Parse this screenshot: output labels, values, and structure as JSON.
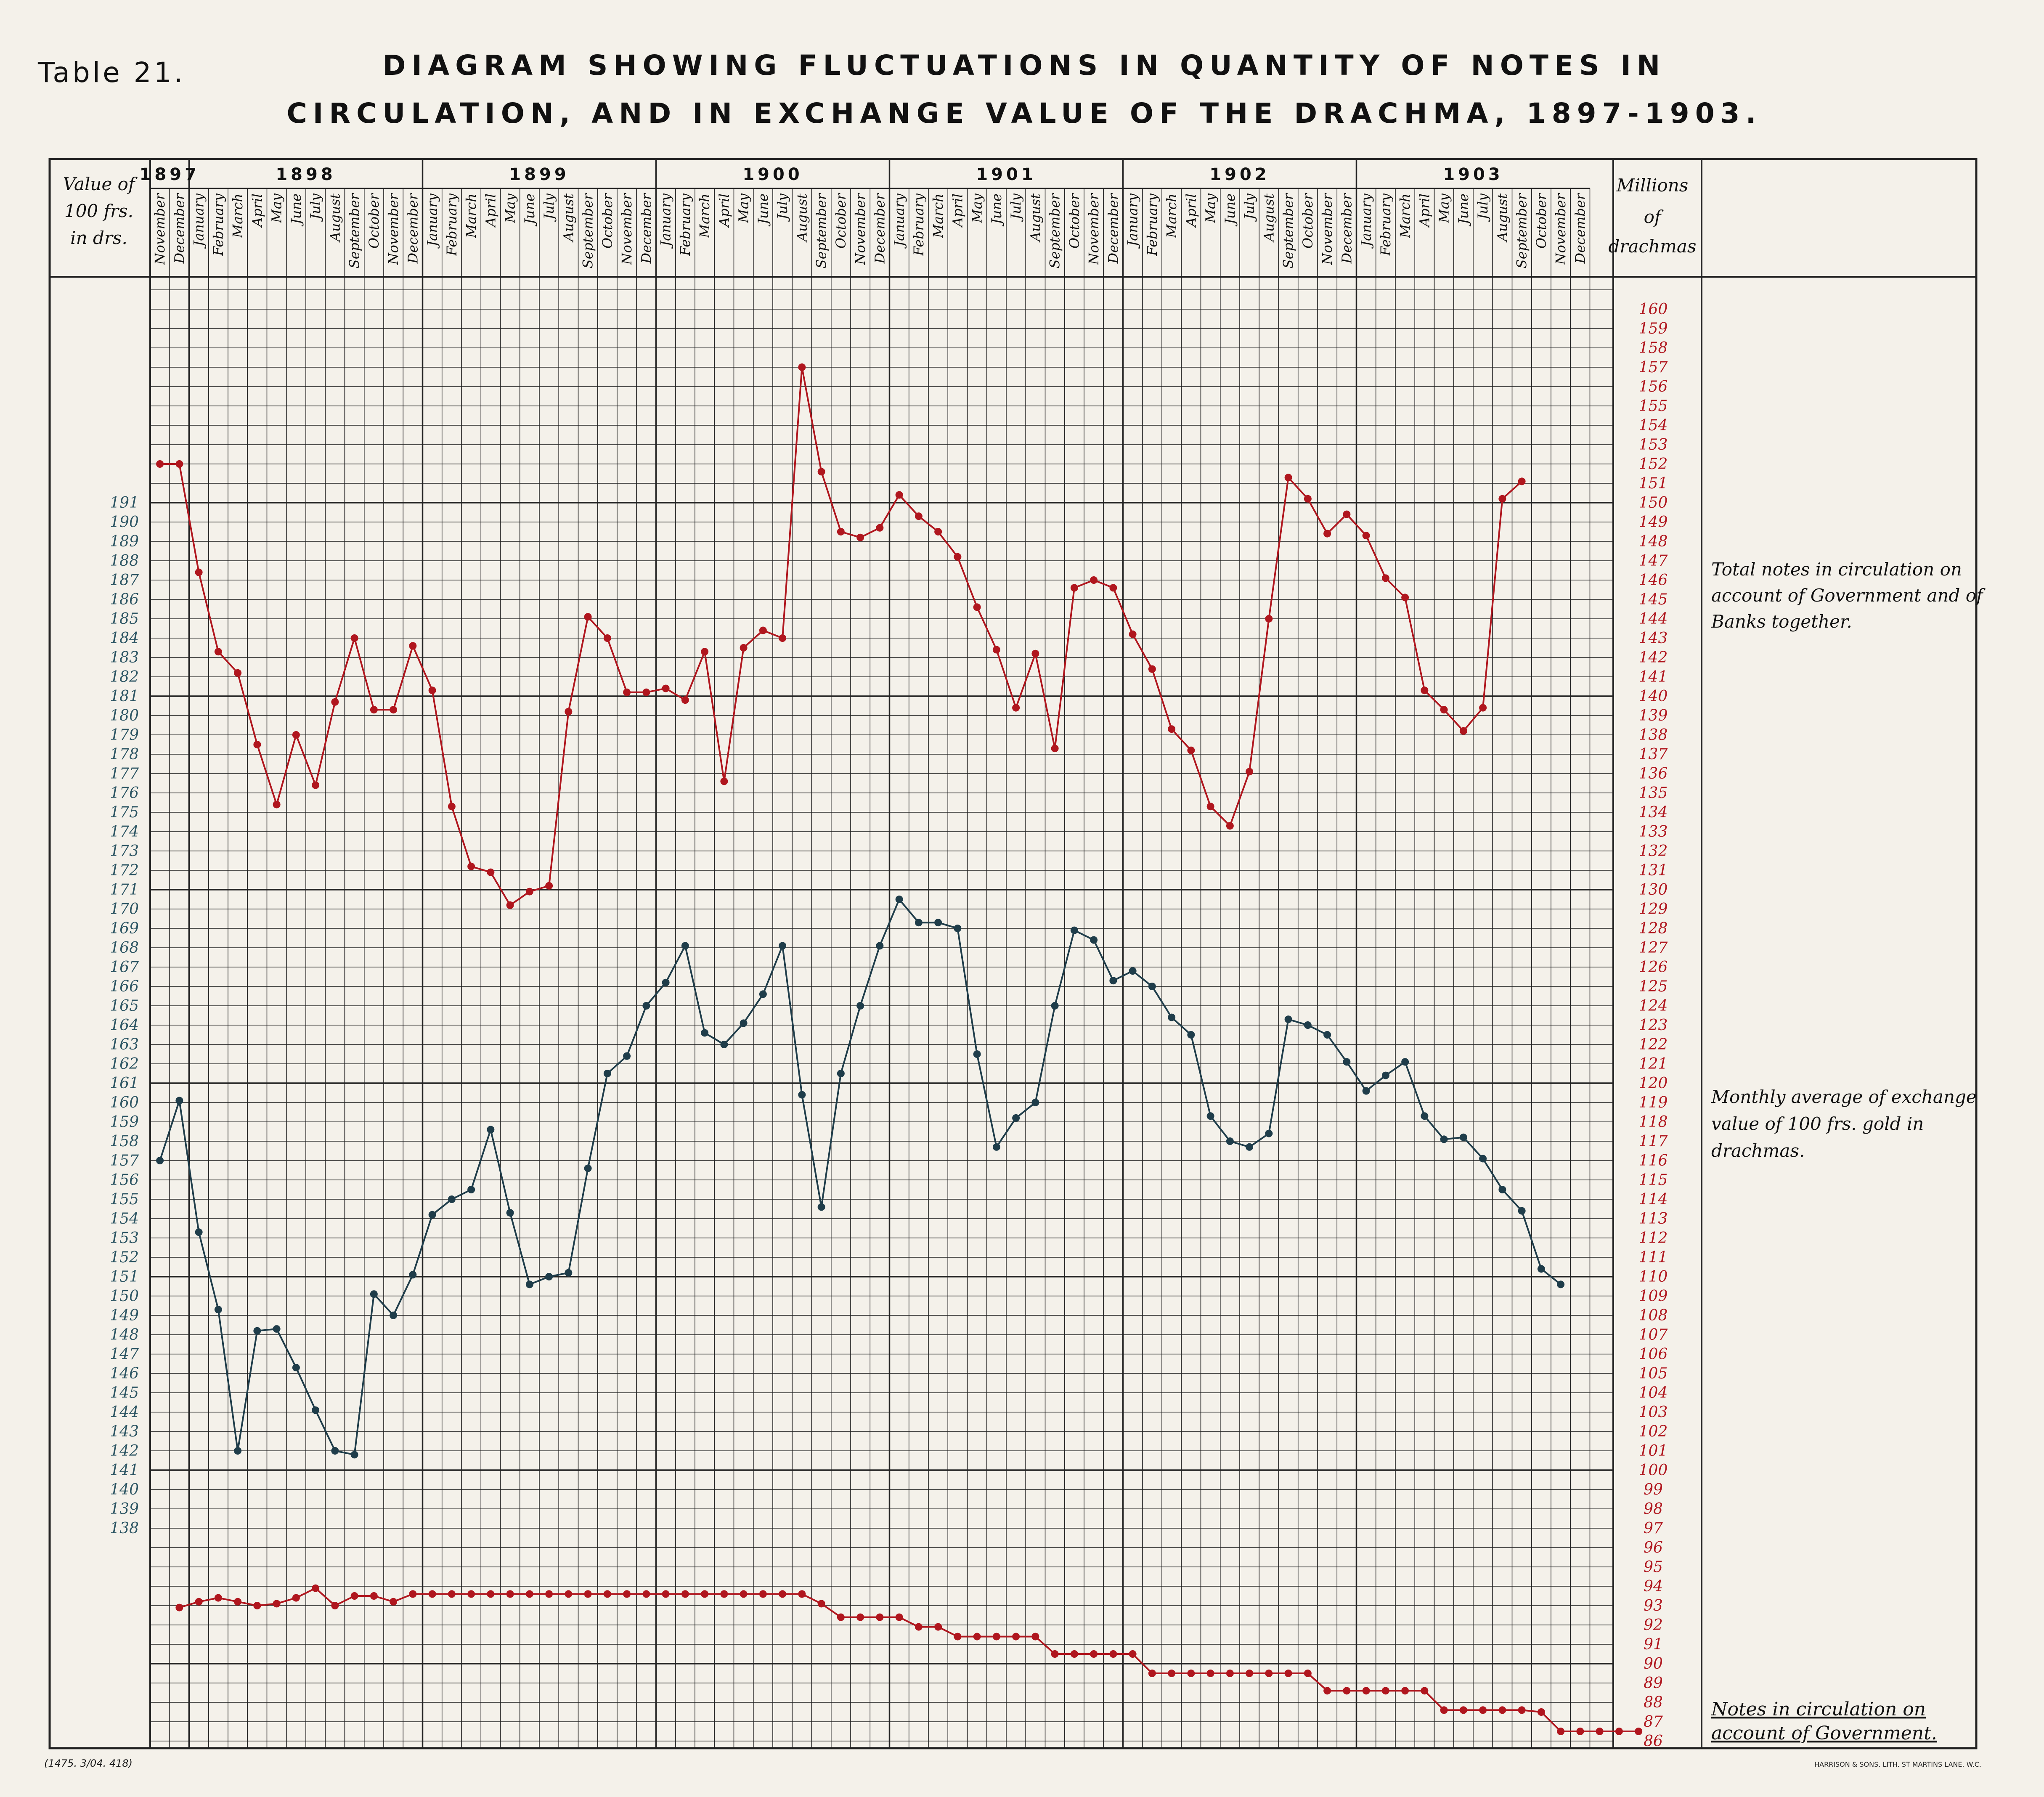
{
  "header": {
    "table_label": "Table 21.",
    "title_line1": "DIAGRAM SHOWING FLUCTUATIONS IN QUANTITY OF NOTES IN",
    "title_line2": "CIRCULATION, AND IN EXCHANGE VALUE OF THE DRACHMA, 1897-1903."
  },
  "left_axis_header": [
    "Value of",
    "100 frs.",
    "in drs."
  ],
  "right_axis_header": [
    "Millions",
    "of",
    "drachmas"
  ],
  "annotations": {
    "total_notes": [
      "Total notes in circulation on",
      "account of Government and of",
      "Banks together."
    ],
    "exchange": [
      "Monthly average of exchange",
      "value of 100 frs. gold in",
      "drachmas."
    ],
    "government_notes": [
      "Notes in circulation on",
      "account of Government."
    ]
  },
  "footer": {
    "left_code": "(1475. 3/04. 418)",
    "printer": "HARRISON & SONS. LITH. ST MARTINS LANE. W.C."
  },
  "colors": {
    "red_series": "#b0161e",
    "blue_series": "#1f3d4a",
    "left_ticks": "#2c5563",
    "right_ticks": "#b0161e",
    "grid": "#222222",
    "paper": "#f4f1ea"
  },
  "chart_data": {
    "type": "line",
    "years": [
      {
        "label": "1897",
        "months": [
          "November",
          "December"
        ]
      },
      {
        "label": "1898",
        "months": [
          "January",
          "February",
          "March",
          "April",
          "May",
          "June",
          "July",
          "August",
          "September",
          "October",
          "November",
          "December"
        ]
      },
      {
        "label": "1899",
        "months": [
          "January",
          "February",
          "March",
          "April",
          "May",
          "June",
          "July",
          "August",
          "September",
          "October",
          "November",
          "December"
        ]
      },
      {
        "label": "1900",
        "months": [
          "January",
          "February",
          "March",
          "April",
          "May",
          "June",
          "July",
          "August",
          "September",
          "October",
          "November",
          "December"
        ]
      },
      {
        "label": "1901",
        "months": [
          "January",
          "February",
          "March",
          "April",
          "May",
          "June",
          "July",
          "August",
          "September",
          "October",
          "November",
          "December"
        ]
      },
      {
        "label": "1902",
        "months": [
          "January",
          "February",
          "March",
          "April",
          "May",
          "June",
          "July",
          "August",
          "September",
          "October",
          "November",
          "December"
        ]
      },
      {
        "label": "1903",
        "months": [
          "January",
          "February",
          "March",
          "April",
          "May",
          "June",
          "July",
          "August",
          "September",
          "October",
          "November",
          "December"
        ]
      }
    ],
    "left_axis": {
      "ticks": [
        191,
        190,
        189,
        188,
        187,
        186,
        185,
        184,
        183,
        182,
        181,
        180,
        179,
        178,
        177,
        176,
        175,
        174,
        173,
        172,
        171,
        170,
        169,
        168,
        167,
        166,
        165,
        164,
        163,
        162,
        161,
        160,
        159,
        158,
        157,
        156,
        155,
        154,
        153,
        152,
        151,
        150,
        149,
        148,
        147,
        146,
        145,
        144,
        143,
        142,
        141,
        140,
        139,
        138
      ]
    },
    "right_axis": {
      "ticks": [
        160,
        159,
        158,
        157,
        156,
        155,
        154,
        153,
        152,
        151,
        150,
        149,
        148,
        147,
        146,
        145,
        144,
        143,
        142,
        141,
        140,
        139,
        138,
        137,
        136,
        135,
        134,
        133,
        132,
        131,
        130,
        129,
        128,
        127,
        126,
        125,
        124,
        123,
        122,
        121,
        120,
        119,
        118,
        117,
        116,
        115,
        114,
        113,
        112,
        111,
        110,
        109,
        108,
        107,
        106,
        105,
        104,
        103,
        102,
        101,
        100,
        99,
        98,
        97,
        96,
        95,
        94,
        93,
        92,
        91,
        90,
        89,
        88,
        87,
        86
      ]
    },
    "series": [
      {
        "name": "Total notes in circulation on account of Government and of Banks together.",
        "axis": "right",
        "color": "#b0161e",
        "start_index": 0,
        "values": [
          152.0,
          152.0,
          146.4,
          142.3,
          141.2,
          137.5,
          134.4,
          138.0,
          135.4,
          139.7,
          143.0,
          139.3,
          139.3,
          142.6,
          140.3,
          134.3,
          131.2,
          130.9,
          129.2,
          129.9,
          130.2,
          139.2,
          144.1,
          143.0,
          140.2,
          140.2,
          140.4,
          139.8,
          142.3,
          135.6,
          142.5,
          143.4,
          143.0,
          157.0,
          151.6,
          148.5,
          148.2,
          148.7,
          150.4,
          149.3,
          148.5,
          147.2,
          144.6,
          142.4,
          139.4,
          142.2,
          137.3,
          145.6,
          146.0,
          145.6,
          143.2,
          141.4,
          138.3,
          137.2,
          134.3,
          133.3,
          136.1,
          144.0,
          151.3,
          150.2,
          148.4,
          149.4,
          148.3,
          146.1,
          145.1,
          140.3,
          139.3,
          138.2,
          139.4,
          150.2,
          151.1
        ]
      },
      {
        "name": "Monthly average of exchange value of 100 frs. gold in drachmas.",
        "axis": "left",
        "color": "#1f3d4a",
        "start_index": 0,
        "values": [
          157.0,
          160.1,
          153.3,
          149.3,
          142.0,
          148.2,
          148.3,
          146.3,
          144.1,
          142.0,
          141.8,
          150.1,
          149.0,
          151.1,
          154.2,
          155.0,
          155.5,
          158.6,
          154.3,
          150.6,
          151.0,
          151.2,
          156.6,
          161.5,
          162.4,
          165.0,
          166.2,
          168.1,
          163.6,
          163.0,
          164.1,
          165.6,
          168.1,
          160.4,
          154.6,
          161.5,
          165.0,
          168.1,
          170.5,
          169.3,
          169.3,
          169.0,
          162.5,
          157.7,
          159.2,
          160.0,
          165.0,
          168.9,
          168.4,
          166.3,
          166.8,
          166.0,
          164.4,
          163.5,
          159.3,
          158.0,
          157.7,
          158.4,
          164.3,
          164.0,
          163.5,
          162.1,
          160.6,
          161.4,
          162.1,
          159.3,
          158.1,
          158.2,
          157.1,
          155.5,
          154.4,
          151.4,
          150.6
        ]
      },
      {
        "name": "Notes in circulation on account of Government.",
        "axis": "right",
        "color": "#b0161e",
        "start_index": 1,
        "values": [
          92.9,
          93.2,
          93.4,
          93.2,
          93.0,
          93.1,
          93.4,
          93.9,
          93.0,
          93.5,
          93.5,
          93.2,
          93.6,
          93.6,
          93.6,
          93.6,
          93.6,
          93.6,
          93.6,
          93.6,
          93.6,
          93.6,
          93.6,
          93.6,
          93.6,
          93.6,
          93.6,
          93.6,
          93.6,
          93.6,
          93.6,
          93.6,
          93.6,
          93.1,
          92.4,
          92.4,
          92.4,
          92.4,
          91.9,
          91.9,
          91.4,
          91.4,
          91.4,
          91.4,
          91.4,
          90.5,
          90.5,
          90.5,
          90.5,
          90.5,
          89.5,
          89.5,
          89.5,
          89.5,
          89.5,
          89.5,
          89.5,
          89.5,
          89.5,
          88.6,
          88.6,
          88.6,
          88.6,
          88.6,
          88.6,
          87.6,
          87.6,
          87.6,
          87.6,
          87.6,
          87.5,
          86.5,
          86.5,
          86.5,
          86.5,
          86.5
        ]
      }
    ]
  }
}
